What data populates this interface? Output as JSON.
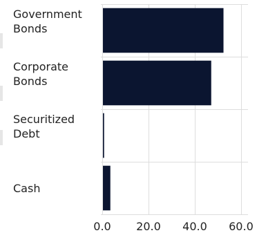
{
  "chart_data": {
    "type": "bar",
    "orientation": "horizontal",
    "categories": [
      [
        "Government",
        "Bonds"
      ],
      [
        "Corporate",
        "Bonds"
      ],
      [
        "Securitized",
        "Debt"
      ],
      [
        "Cash"
      ]
    ],
    "values": [
      52.1,
      46.8,
      0.5,
      3.2
    ],
    "xlim": [
      0,
      63
    ],
    "xticks": [
      "0.0",
      "20.0",
      "40.0",
      "60.0"
    ],
    "xtick_values": [
      0,
      20,
      40,
      60
    ],
    "grid": true,
    "bar_color": "#0b1530"
  }
}
